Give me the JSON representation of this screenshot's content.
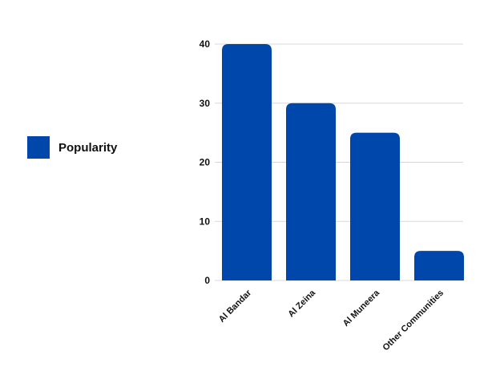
{
  "chart_data": {
    "type": "bar",
    "categories": [
      "Al Bandar",
      "Al Zeina",
      "Al Muneera",
      "Other Communities"
    ],
    "series": [
      {
        "name": "Popularity",
        "values": [
          40,
          30,
          25,
          5
        ]
      }
    ],
    "ylim": [
      0,
      40
    ],
    "yticks": [
      0,
      10,
      20,
      30,
      40
    ],
    "grid": true,
    "legend_position": "left",
    "bar_color": "#0047AB",
    "grid_color": "#d9d9d9"
  }
}
